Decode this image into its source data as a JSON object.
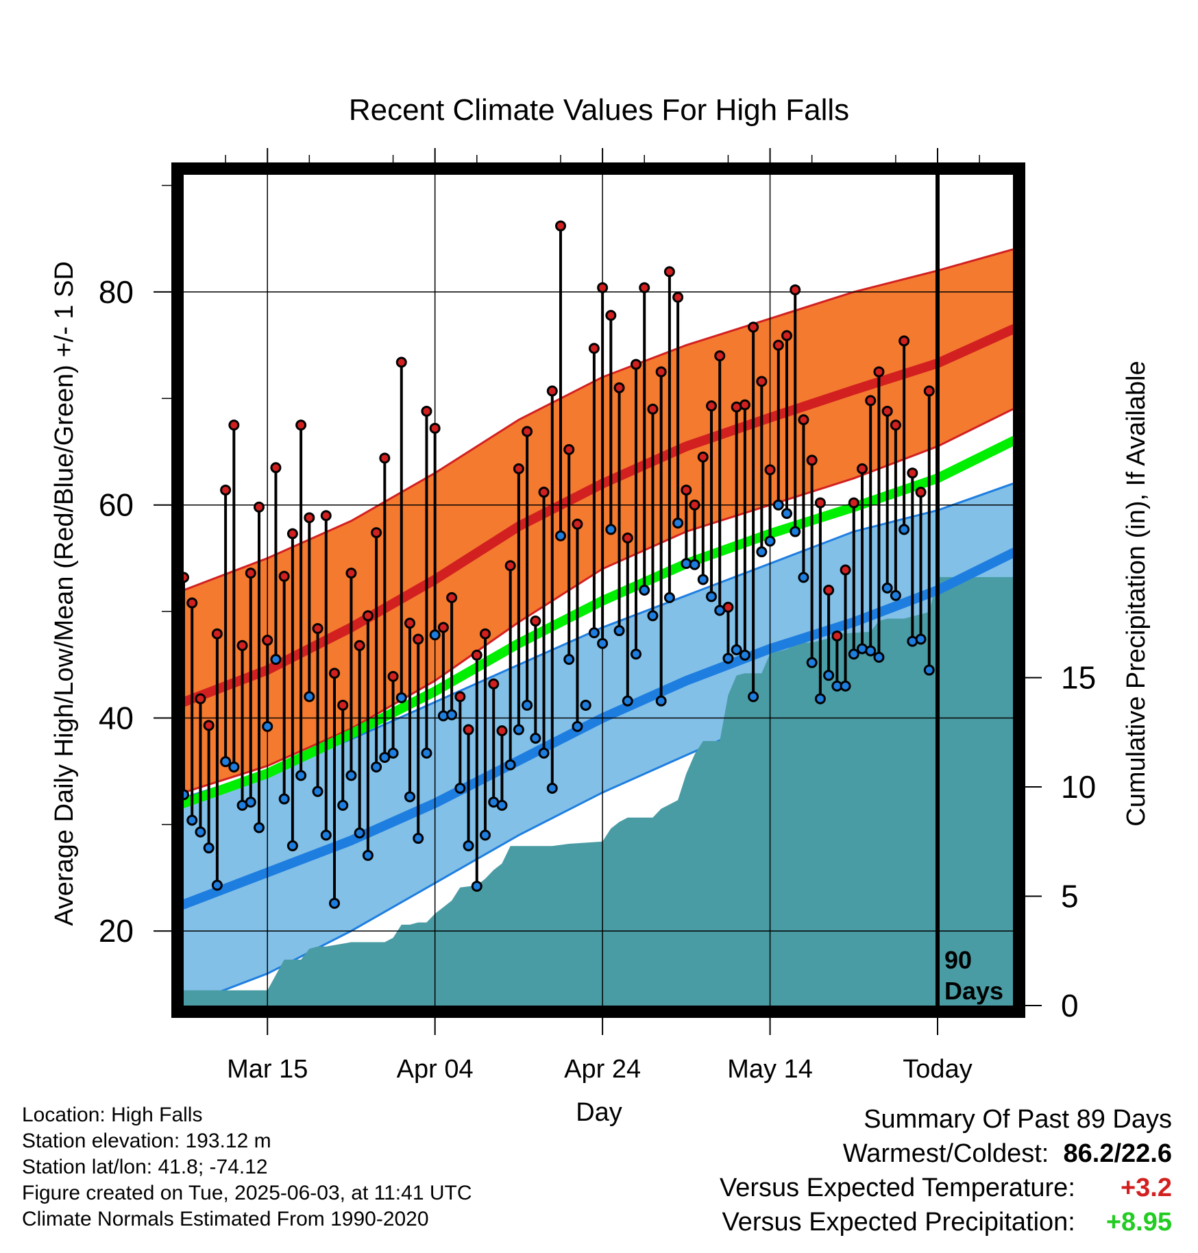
{
  "chart_data": {
    "type": "line",
    "title": "Recent Climate Values For High Falls",
    "xlabel": "Day",
    "ylabel": "Average Daily High/Low/Mean (Red/Blue/Green) +/- 1 SD",
    "y2label": "Cumulative Precipitation (in), If Available",
    "xlim": [
      0,
      99
    ],
    "ylim": [
      13,
      91
    ],
    "y2lim": [
      0,
      38
    ],
    "x_ticks": [
      {
        "x": 10,
        "label": "Mar 15"
      },
      {
        "x": 30,
        "label": "Apr 04"
      },
      {
        "x": 50,
        "label": "Apr 24"
      },
      {
        "x": 70,
        "label": "May 14"
      },
      {
        "x": 90,
        "label": "Today"
      }
    ],
    "y_ticks": [
      20,
      40,
      60,
      80
    ],
    "y2_ticks": [
      0,
      5,
      10,
      15
    ],
    "grid": true,
    "today_marker": {
      "x": 90,
      "label_line1": "90",
      "label_line2": "Days"
    },
    "normals": {
      "x": [
        0,
        10,
        20,
        30,
        40,
        50,
        60,
        70,
        80,
        90,
        99
      ],
      "high_mean": [
        41.5,
        44.5,
        48.5,
        53.0,
        58.0,
        62.0,
        65.5,
        68.2,
        70.8,
        73.3,
        76.5
      ],
      "high_sd_upper": [
        52.0,
        55.0,
        58.5,
        63.0,
        68.0,
        72.0,
        75.0,
        77.5,
        80.0,
        82.0,
        84.0
      ],
      "high_sd_lower": [
        33.0,
        35.5,
        39.0,
        43.5,
        49.0,
        54.0,
        57.5,
        60.0,
        62.5,
        65.5,
        69.0
      ],
      "mean": [
        32.0,
        34.8,
        38.5,
        42.5,
        47.0,
        51.0,
        54.5,
        57.3,
        59.8,
        62.5,
        66.0
      ],
      "low_mean": [
        22.5,
        25.5,
        28.5,
        32.0,
        36.0,
        40.0,
        43.5,
        46.5,
        49.0,
        52.0,
        55.5
      ],
      "low_sd_upper": [
        32.5,
        35.0,
        38.0,
        41.5,
        45.0,
        48.5,
        51.5,
        54.5,
        57.5,
        59.5,
        62.0
      ],
      "low_sd_lower": [
        13.0,
        16.0,
        20.0,
        24.5,
        29.0,
        33.0,
        36.5,
        40.0,
        42.5,
        46.0,
        49.5
      ]
    },
    "series": [
      {
        "name": "Red",
        "color": "#d22020",
        "values": [
          53.2,
          50.8,
          41.8,
          39.3,
          47.9,
          61.4,
          67.5,
          46.8,
          53.6,
          59.8,
          47.3,
          63.5,
          53.3,
          57.3,
          67.5,
          58.8,
          48.4,
          59.0,
          44.2,
          41.2,
          53.6,
          46.8,
          49.6,
          57.4,
          64.4,
          43.9,
          73.4,
          48.9,
          47.4,
          68.8,
          67.2,
          48.5,
          51.3,
          42.0,
          38.9,
          45.9,
          47.9,
          43.2,
          38.8,
          54.3,
          63.4,
          66.9,
          49.1,
          61.2,
          70.7,
          86.2,
          65.2,
          58.2,
          41.2,
          74.7,
          80.4,
          77.8,
          71.0,
          56.9,
          73.2,
          80.4,
          69.0,
          72.5,
          81.9,
          79.5,
          61.4,
          60.0,
          64.5,
          69.3,
          74.0,
          50.4,
          69.2,
          69.4,
          76.7,
          71.6,
          63.3,
          75.0,
          75.9,
          80.2,
          68.0,
          64.2,
          60.2,
          52.0,
          47.7,
          53.9,
          60.2,
          63.4,
          69.8,
          72.5,
          68.8,
          67.5,
          75.4,
          63.0,
          61.2,
          70.7
        ]
      },
      {
        "name": "Blue",
        "color": "#1e7ee0",
        "values": [
          32.8,
          30.4,
          29.3,
          27.8,
          24.3,
          35.9,
          35.4,
          31.8,
          32.1,
          29.7,
          39.2,
          45.5,
          32.4,
          28.0,
          34.6,
          42.0,
          33.1,
          29.0,
          22.6,
          31.8,
          34.6,
          29.2,
          27.1,
          35.4,
          36.3,
          36.7,
          41.9,
          32.6,
          28.7,
          36.7,
          47.8,
          40.2,
          40.3,
          33.4,
          28.0,
          24.2,
          29.0,
          32.1,
          31.8,
          35.6,
          38.9,
          41.2,
          38.1,
          36.7,
          33.4,
          57.1,
          45.5,
          39.2,
          41.2,
          48.0,
          47.0,
          57.7,
          48.2,
          41.6,
          46.0,
          52.0,
          49.6,
          41.6,
          51.3,
          58.3,
          54.5,
          54.4,
          53.0,
          51.4,
          50.1,
          45.6,
          46.4,
          45.9,
          42.0,
          55.6,
          56.6,
          60.0,
          59.2,
          57.5,
          53.2,
          45.2,
          41.8,
          44.0,
          43.0,
          43.0,
          46.0,
          46.5,
          46.3,
          45.7,
          52.2,
          51.5,
          57.7,
          47.2,
          47.4,
          44.5
        ]
      }
    ],
    "precip": {
      "x": [
        0,
        10,
        12,
        14,
        15,
        16,
        17,
        20,
        24,
        25,
        26,
        27,
        28,
        29,
        30,
        31,
        32,
        33,
        35,
        36,
        37,
        38,
        39,
        40,
        44,
        46,
        50,
        51,
        52,
        53,
        56,
        57,
        58,
        59,
        60,
        61,
        62,
        64,
        65,
        66,
        67,
        68,
        69,
        70,
        72,
        73,
        74,
        75,
        76,
        77,
        78,
        82,
        83,
        84,
        86,
        87,
        88,
        89,
        90,
        99
      ],
      "values": [
        0.7,
        0.7,
        2.1,
        2.1,
        2.6,
        2.7,
        2.7,
        2.9,
        2.9,
        3.1,
        3.7,
        3.7,
        3.8,
        3.8,
        4.2,
        4.5,
        4.8,
        5.4,
        5.5,
        5.8,
        6.2,
        6.5,
        7.3,
        7.3,
        7.3,
        7.4,
        7.5,
        8.1,
        8.4,
        8.6,
        8.6,
        9.0,
        9.2,
        9.4,
        10.6,
        11.5,
        12.1,
        12.1,
        14.2,
        15.1,
        15.2,
        15.2,
        15.2,
        16.1,
        16.3,
        16.5,
        16.6,
        16.6,
        16.7,
        16.8,
        17.0,
        17.1,
        17.6,
        17.7,
        17.7,
        17.8,
        17.9,
        18.0,
        19.6,
        19.6
      ]
    }
  },
  "info": {
    "location": "Location: High Falls",
    "elevation": "Station elevation: 193.12 m",
    "latlon": "Station lat/lon: 41.8; -74.12",
    "created": "Figure created on Tue, 2025-06-03, at 11:41 UTC",
    "normals": "Climate Normals Estimated From 1990-2020"
  },
  "summary": {
    "heading": "Summary Of Past 89 Days",
    "warm_cold_label": "Warmest/Coldest:",
    "warmest": "86.2",
    "coldest": "22.6",
    "temp_label": "Versus Expected Temperature:",
    "temp_value": "+3.2",
    "temp_color": "#d22020",
    "precip_label": "Versus Expected Precipitation:",
    "precip_value": "+8.95",
    "precip_color": "#22cc22"
  },
  "colors": {
    "high_band": "#f47a30",
    "high_band_edge": "#d22020",
    "high_mean": "#d22020",
    "low_band": "#82c0e8",
    "low_band_edge": "#1e7ee0",
    "low_mean": "#1e7ee0",
    "mean": "#00ee00",
    "precip": "#4a9ca4"
  }
}
